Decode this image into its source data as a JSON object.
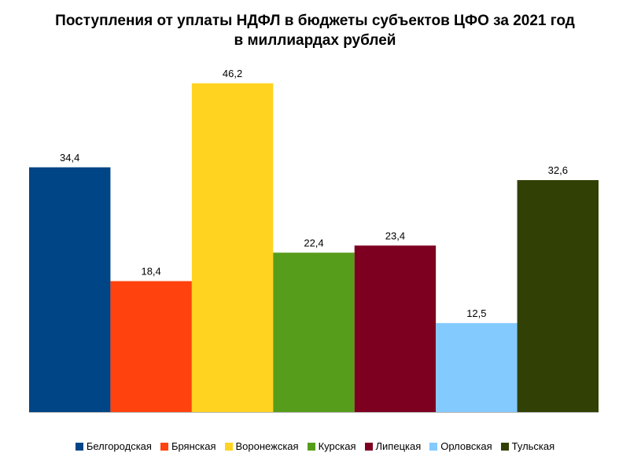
{
  "title": {
    "line1": "Поступления от уплаты НДФЛ в бюджеты субъектов ЦФО за 2021 год",
    "line2": "в миллиардах рублей"
  },
  "chart_data": {
    "type": "bar",
    "title": "Поступления от уплаты НДФЛ в бюджеты субъектов ЦФО за 2021 год в миллиардах рублей",
    "categories": [
      "Белгородская",
      "Брянская",
      "Воронежская",
      "Курская",
      "Липецкая",
      "Орловская",
      "Тульская"
    ],
    "values": [
      34.4,
      18.4,
      46.2,
      22.4,
      23.4,
      12.5,
      32.6
    ],
    "data_labels": [
      "34,4",
      "18,4",
      "46,2",
      "22,4",
      "23,4",
      "12,5",
      "32,6"
    ],
    "colors": [
      "#004586",
      "#FF420E",
      "#FFD320",
      "#579D1C",
      "#7E0021",
      "#83CAFF",
      "#314004"
    ],
    "xlabel": "",
    "ylabel": "",
    "ylim": [
      0,
      46.2
    ],
    "grid": false,
    "legend_position": "bottom"
  }
}
